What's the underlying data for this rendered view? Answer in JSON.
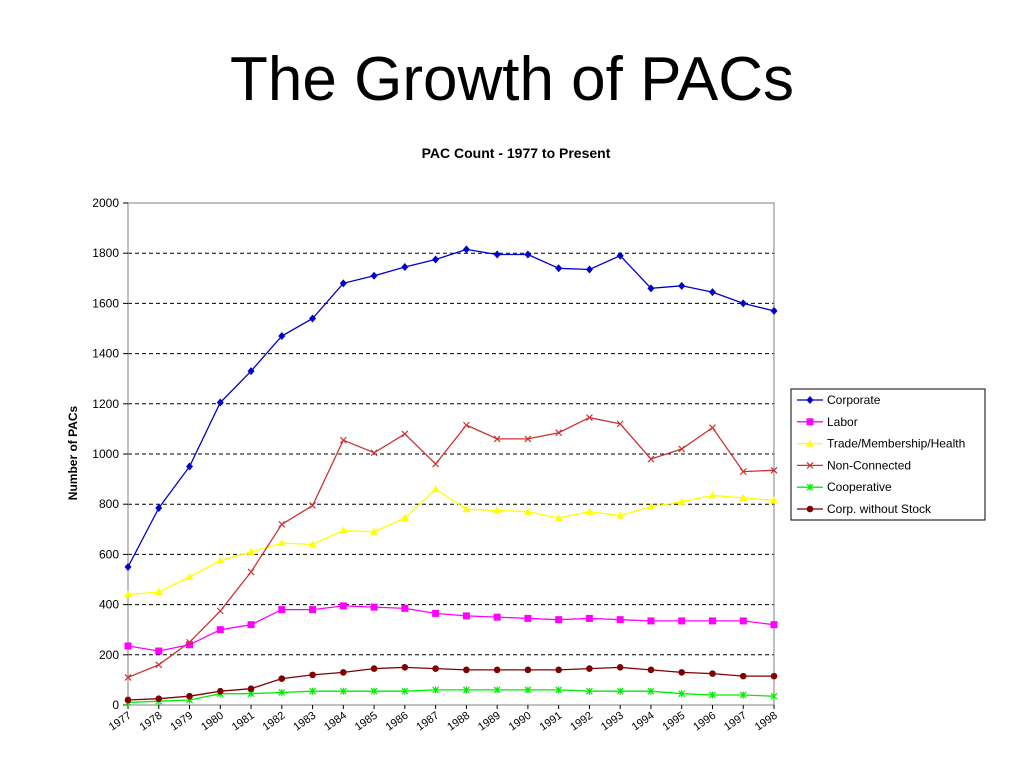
{
  "slide": {
    "title": "The Growth of PACs"
  },
  "chart_data": {
    "type": "line",
    "title": "PAC Count - 1977 to Present",
    "xlabel": "",
    "ylabel": "Number of PACs",
    "ylim": [
      0,
      2000
    ],
    "yticks": [
      0,
      200,
      400,
      600,
      800,
      1000,
      1200,
      1400,
      1600,
      1800,
      2000
    ],
    "grid": true,
    "legend_position": "right",
    "categories": [
      "1977",
      "1978",
      "1979",
      "1980",
      "1981",
      "1982",
      "1983",
      "1984",
      "1985",
      "1986",
      "1987",
      "1988",
      "1989",
      "1990",
      "1991",
      "1992",
      "1993",
      "1994",
      "1995",
      "1996",
      "1997",
      "1998"
    ],
    "series": [
      {
        "name": "Corporate",
        "color": "#0000cc",
        "marker": "diamond",
        "values": [
          550,
          785,
          950,
          1205,
          1330,
          1470,
          1540,
          1680,
          1710,
          1745,
          1775,
          1815,
          1795,
          1795,
          1740,
          1735,
          1790,
          1660,
          1670,
          1645,
          1600,
          1570
        ]
      },
      {
        "name": "Labor",
        "color": "#ff00ff",
        "marker": "square",
        "values": [
          235,
          215,
          240,
          300,
          320,
          380,
          380,
          395,
          390,
          385,
          365,
          355,
          350,
          345,
          340,
          345,
          340,
          335,
          335,
          335,
          335,
          320
        ]
      },
      {
        "name": "Trade/Membership/Health",
        "color": "#ffff00",
        "marker": "triangle",
        "values": [
          440,
          450,
          510,
          575,
          610,
          645,
          640,
          695,
          690,
          745,
          860,
          780,
          775,
          770,
          745,
          770,
          755,
          790,
          810,
          835,
          825,
          815
        ]
      },
      {
        "name": "Non-Connected",
        "color": "#cc3333",
        "marker": "x",
        "values": [
          110,
          160,
          250,
          375,
          530,
          720,
          795,
          1055,
          1005,
          1080,
          960,
          1115,
          1060,
          1060,
          1085,
          1145,
          1120,
          980,
          1020,
          1105,
          930,
          935
        ]
      },
      {
        "name": "Cooperative",
        "color": "#00ee00",
        "marker": "asterisk",
        "values": [
          10,
          15,
          20,
          45,
          45,
          50,
          55,
          55,
          55,
          55,
          60,
          60,
          60,
          60,
          60,
          55,
          55,
          55,
          45,
          40,
          40,
          35
        ]
      },
      {
        "name": "Corp. without Stock",
        "color": "#800000",
        "marker": "circle",
        "values": [
          20,
          25,
          35,
          55,
          65,
          105,
          120,
          130,
          145,
          150,
          145,
          140,
          140,
          140,
          140,
          145,
          150,
          140,
          130,
          125,
          115,
          115
        ]
      }
    ]
  }
}
